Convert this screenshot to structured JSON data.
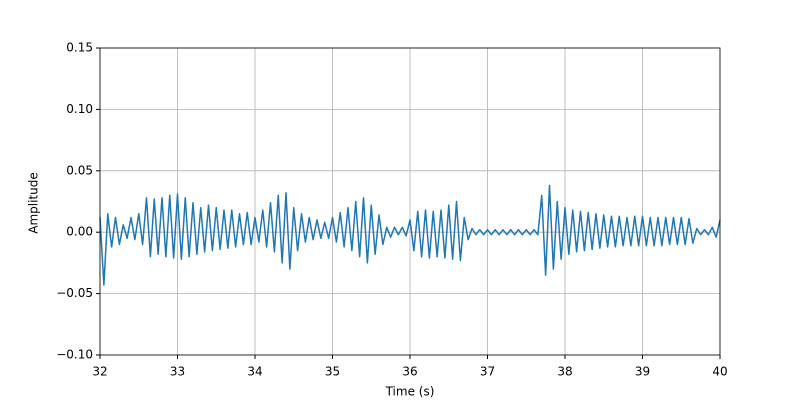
{
  "chart_data": {
    "type": "line",
    "xlabel": "Time (s)",
    "ylabel": "Amplitude",
    "color": "#1f77b4",
    "grid": true,
    "xlim": [
      32,
      40
    ],
    "xticks": [
      32,
      33,
      34,
      35,
      36,
      37,
      38,
      39,
      40
    ],
    "ylim": [
      -0.1,
      0.15
    ],
    "yticks": [
      {
        "value": -0.1,
        "label": "−0.10"
      },
      {
        "value": -0.05,
        "label": "−0.05"
      },
      {
        "value": 0,
        "label": "0.00"
      },
      0.05,
      {
        "value": 0.1,
        "label": "0.10"
      },
      0.15
    ],
    "x": [
      32,
      32.05,
      32.1,
      32.15,
      32.2,
      32.25,
      32.3,
      32.35,
      32.4,
      32.45,
      32.5,
      32.55,
      32.6,
      32.65,
      32.7,
      32.75,
      32.8,
      32.85,
      32.9,
      32.95,
      33,
      33.05,
      33.1,
      33.15,
      33.2,
      33.25,
      33.3,
      33.35,
      33.4,
      33.45,
      33.5,
      33.55,
      33.6,
      33.65,
      33.7,
      33.75,
      33.8,
      33.85,
      33.9,
      33.95,
      34,
      34.05,
      34.1,
      34.15,
      34.2,
      34.25,
      34.3,
      34.35,
      34.4,
      34.45,
      34.5,
      34.55,
      34.6,
      34.65,
      34.7,
      34.75,
      34.8,
      34.85,
      34.9,
      34.95,
      35,
      35.05,
      35.1,
      35.15,
      35.2,
      35.25,
      35.3,
      35.35,
      35.4,
      35.45,
      35.5,
      35.55,
      35.6,
      35.65,
      35.7,
      35.75,
      35.8,
      35.85,
      35.9,
      35.95,
      36,
      36.05,
      36.1,
      36.15,
      36.2,
      36.25,
      36.3,
      36.35,
      36.4,
      36.45,
      36.5,
      36.55,
      36.6,
      36.65,
      36.7,
      36.75,
      36.8,
      36.85,
      36.9,
      36.95,
      37,
      37.05,
      37.1,
      37.15,
      37.2,
      37.25,
      37.3,
      37.35,
      37.4,
      37.45,
      37.5,
      37.55,
      37.6,
      37.65,
      37.7,
      37.75,
      37.8,
      37.85,
      37.9,
      37.95,
      38,
      38.05,
      38.1,
      38.15,
      38.2,
      38.25,
      38.3,
      38.35,
      38.4,
      38.45,
      38.5,
      38.55,
      38.6,
      38.65,
      38.7,
      38.75,
      38.8,
      38.85,
      38.9,
      38.95,
      39,
      39.05,
      39.1,
      39.15,
      39.2,
      39.25,
      39.3,
      39.35,
      39.4,
      39.45,
      39.5,
      39.55,
      39.6,
      39.65,
      39.7,
      39.75,
      39.8,
      39.85,
      39.9,
      39.95,
      40
    ],
    "values": [
      0.012,
      -0.043,
      0.015,
      -0.012,
      0.012,
      -0.01,
      0.006,
      -0.005,
      0.012,
      -0.006,
      0.015,
      -0.01,
      0.028,
      -0.02,
      0.027,
      -0.018,
      0.028,
      -0.02,
      0.03,
      -0.021,
      0.031,
      -0.022,
      0.028,
      -0.02,
      0.024,
      -0.018,
      0.02,
      -0.016,
      0.022,
      -0.015,
      0.02,
      -0.014,
      0.018,
      -0.013,
      0.018,
      -0.012,
      0.015,
      -0.01,
      0.016,
      -0.01,
      0.012,
      -0.008,
      0.018,
      -0.012,
      0.024,
      -0.016,
      0.03,
      -0.025,
      0.032,
      -0.03,
      0.02,
      -0.015,
      0.015,
      -0.008,
      0.012,
      -0.006,
      0.01,
      -0.005,
      0.008,
      -0.005,
      0.012,
      -0.008,
      0.016,
      -0.012,
      0.02,
      -0.015,
      0.025,
      -0.02,
      0.028,
      -0.025,
      0.022,
      -0.018,
      0.014,
      -0.01,
      0.004,
      -0.004,
      0.004,
      -0.002,
      0.004,
      -0.003,
      0.01,
      -0.015,
      0.017,
      -0.02,
      0.018,
      -0.021,
      0.017,
      -0.02,
      0.018,
      -0.021,
      0.022,
      -0.022,
      0.025,
      -0.023,
      0.012,
      -0.006,
      0.003,
      -0.002,
      0.002,
      -0.002,
      0.002,
      -0.002,
      0.002,
      -0.002,
      0.002,
      -0.002,
      0.002,
      -0.002,
      0.002,
      -0.002,
      0.002,
      -0.002,
      0.002,
      -0.002,
      0.03,
      -0.035,
      0.038,
      -0.03,
      0.025,
      -0.022,
      0.02,
      -0.018,
      0.018,
      -0.016,
      0.017,
      -0.015,
      0.016,
      -0.014,
      0.015,
      -0.013,
      0.014,
      -0.012,
      0.013,
      -0.012,
      0.013,
      -0.011,
      0.012,
      -0.011,
      0.013,
      -0.011,
      0.013,
      -0.011,
      0.012,
      -0.011,
      0.012,
      -0.011,
      0.012,
      -0.01,
      0.012,
      -0.01,
      0.012,
      -0.01,
      0.011,
      -0.009,
      0.003,
      -0.002,
      0.002,
      -0.002,
      0.004,
      -0.004,
      0.01
    ]
  }
}
